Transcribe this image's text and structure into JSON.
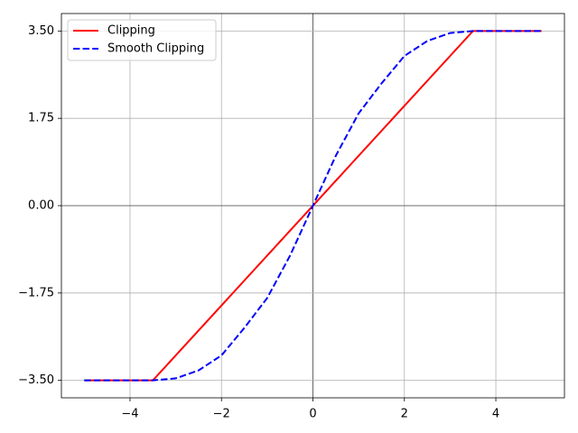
{
  "chart_data": {
    "type": "line",
    "series": [
      {
        "name": "Clipping",
        "color": "#ff0000",
        "line_style": "solid",
        "x": [
          -5,
          -3.5,
          3.5,
          5
        ],
        "values": [
          -3.5,
          -3.5,
          3.5,
          3.5
        ]
      },
      {
        "name": "Smooth Clipping",
        "color": "#0000ff",
        "line_style": "dashed",
        "x": [
          -5,
          -4,
          -3.5,
          -3,
          -2.5,
          -2,
          -1.5,
          -1,
          -0.5,
          0,
          0.5,
          1,
          1.5,
          2,
          2.5,
          3,
          3.5,
          4,
          5
        ],
        "values": [
          -3.5,
          -3.5,
          -3.5,
          -3.46,
          -3.3,
          -3.0,
          -2.45,
          -1.85,
          -1.0,
          0,
          1.0,
          1.85,
          2.45,
          3.0,
          3.3,
          3.46,
          3.5,
          3.5,
          3.5
        ]
      }
    ],
    "xlim": [
      -5.5,
      5.5
    ],
    "ylim": [
      -3.85,
      3.85
    ],
    "xticks": [
      {
        "value": -4,
        "label": "−4"
      },
      {
        "value": -2,
        "label": "−2"
      },
      0,
      2,
      4
    ],
    "yticks": [
      {
        "value": -3.5,
        "label": "−3.50"
      },
      {
        "value": -1.75,
        "label": "−1.75"
      },
      {
        "value": 0,
        "label": "0.00"
      },
      {
        "value": 1.75,
        "label": "1.75"
      },
      {
        "value": 3.5,
        "label": "3.50"
      }
    ],
    "grid": true,
    "zero_lines": true,
    "legend": "upper left"
  }
}
